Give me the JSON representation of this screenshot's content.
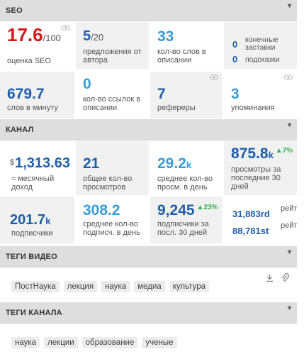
{
  "seo": {
    "header": "SEO",
    "score_value": "17.6",
    "score_max": "/100",
    "score_label": "оценка SEO",
    "suggestions_value": "5",
    "suggestions_max": "/20",
    "suggestions_label": "предложения от автора",
    "desc_words_value": "33",
    "desc_words_label": "кол-во слов в описании",
    "end_screens_value": "0",
    "end_screens_label": "конечные заставки",
    "cards_value": "0",
    "cards_label": "подсказки",
    "wpm_value": "679.7",
    "wpm_label": "слов в минуту",
    "links_value": "0",
    "links_label": "кол-во ссылок в описании",
    "referrers_value": "7",
    "referrers_label": "рефереры",
    "mentions_value": "3",
    "mentions_label": "упоминания"
  },
  "channel": {
    "header": "КАНАЛ",
    "income_currency": "$",
    "income_value": "1,313.63",
    "income_label": "≈ месячный доход",
    "total_views_value": "21",
    "total_views_label": "общее кол-во просмотров",
    "avg_views_day_value": "29.2",
    "avg_views_day_unit": "k",
    "avg_views_day_label": "среднее кол-во просм. в день",
    "views30_value": "875.8",
    "views30_unit": "k",
    "views30_delta": "▲7%",
    "views30_label": "просмотры за последние 30 дней",
    "subs_value": "201.7",
    "subs_unit": "k",
    "subs_label": "подписчики",
    "avg_subs_day_value": "308.2",
    "avg_subs_day_label": "среднее кол-во подписч. в день",
    "subs30_value": "9,245",
    "subs30_delta": "▲23%",
    "subs30_label": "подписчики за посл. 30 дней",
    "rank1_value": "31,883rd",
    "rank1_label": "рейт",
    "rank2_value": "88,781st",
    "rank2_label": "рейт"
  },
  "video_tags": {
    "header": "ТЕГИ ВИДЕО",
    "tags": [
      "ПостНаука",
      "лекция",
      "наука",
      "медиа",
      "культура"
    ]
  },
  "channel_tags": {
    "header": "ТЕГИ КАНАЛА",
    "tags": [
      "наука",
      "лекции",
      "образование",
      "ученые"
    ]
  },
  "colors": {
    "accent_dark": "#1f5ea8",
    "accent_light": "#3a9bd6",
    "score_red": "#d11b1b",
    "delta_green": "#2bb24c"
  },
  "icons": [
    "eye-icon",
    "download-icon",
    "paperclip-icon",
    "caret-down-icon"
  ]
}
